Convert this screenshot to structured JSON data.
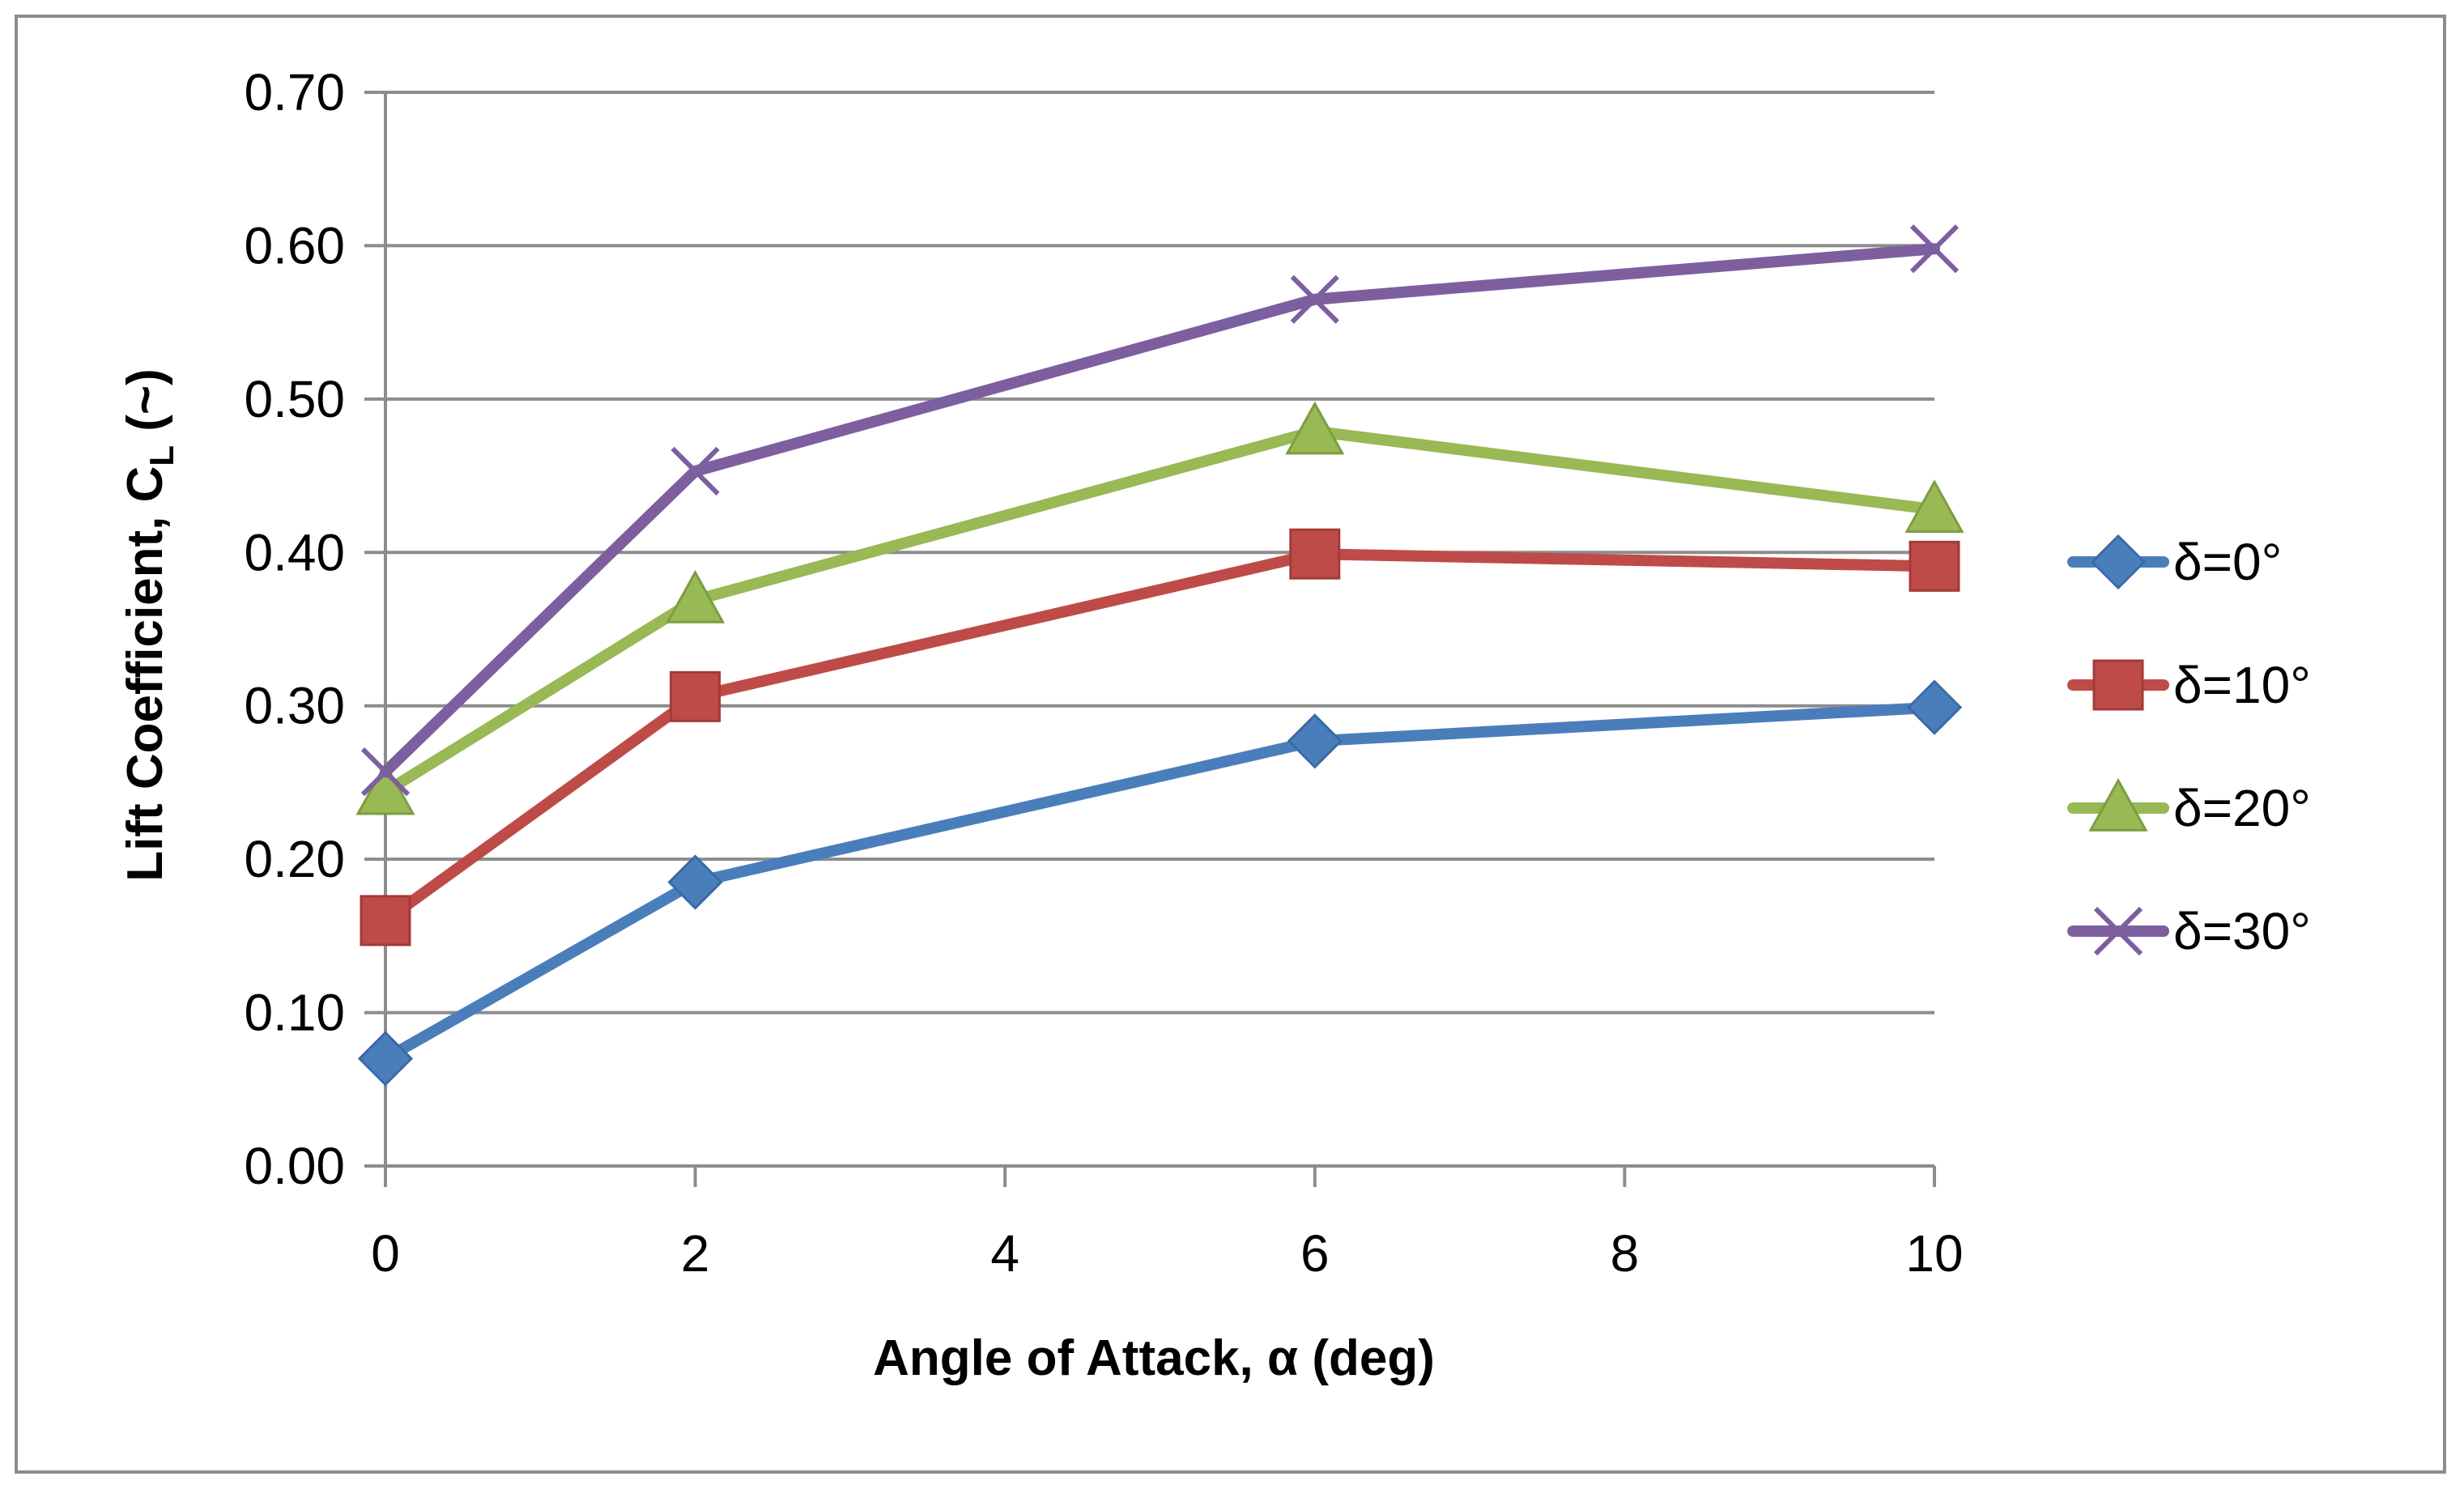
{
  "chart_data": {
    "type": "line",
    "title": "",
    "xlabel": "Angle of Attack, α (deg)",
    "ylabel": {
      "main": "Lift Coefficient, C",
      "subscript": "L",
      "suffix": " (~)"
    },
    "x_ticks": [
      0,
      2,
      4,
      6,
      8,
      10
    ],
    "x_tick_labels": [
      "0",
      "2",
      "4",
      "6",
      "8",
      "10"
    ],
    "y_ticks": [
      0,
      0.1,
      0.2,
      0.3,
      0.4,
      0.5,
      0.6,
      0.7
    ],
    "y_tick_labels": [
      "0.00",
      "0.10",
      "0.20",
      "0.30",
      "0.40",
      "0.50",
      "0.60",
      "0.70"
    ],
    "xlim": [
      0,
      10
    ],
    "ylim": [
      0,
      0.7
    ],
    "grid": "horizontal",
    "legend_position": "right",
    "x": [
      0,
      2,
      6,
      10
    ],
    "series": [
      {
        "name": "δ=0°",
        "values": [
          0.07,
          0.185,
          0.277,
          0.299
        ],
        "color": "#4a7ebb",
        "marker": "diamond"
      },
      {
        "name": "δ=10°",
        "values": [
          0.16,
          0.306,
          0.399,
          0.391
        ],
        "color": "#be4b48",
        "marker": "square"
      },
      {
        "name": "δ=20°",
        "values": [
          0.244,
          0.369,
          0.479,
          0.428
        ],
        "color": "#98b954",
        "marker": "triangle"
      },
      {
        "name": "δ=30°",
        "values": [
          0.257,
          0.453,
          0.565,
          0.598
        ],
        "color": "#7d5fa0",
        "marker": "x"
      }
    ]
  }
}
